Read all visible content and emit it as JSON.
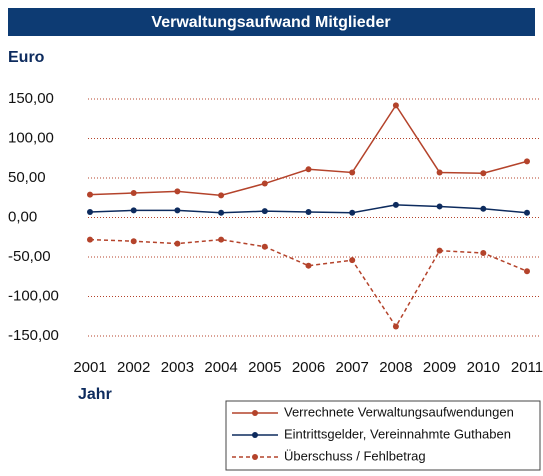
{
  "chart_data": {
    "type": "line",
    "title": "Verwaltungsaufwand Mitglieder",
    "y_label": "Euro",
    "x_label": "Jahr",
    "categories": [
      "2001",
      "2002",
      "2003",
      "2004",
      "2005",
      "2006",
      "2007",
      "2008",
      "2009",
      "2010",
      "2011"
    ],
    "series": [
      {
        "name": "Verrechnete Verwaltungsaufwendungen",
        "color": "#b4432b",
        "dash": false,
        "values": [
          29,
          31,
          33,
          28,
          43,
          61,
          57,
          142,
          57,
          56,
          71
        ]
      },
      {
        "name": "Eintrittsgelder, Vereinnahmte Guthaben",
        "color": "#0d2b5e",
        "dash": false,
        "values": [
          7,
          9,
          9,
          6,
          8,
          7,
          6,
          16,
          14,
          11,
          6
        ]
      },
      {
        "name": "Überschuss / Fehlbetrag",
        "color": "#b4432b",
        "dash": true,
        "values": [
          -28,
          -30,
          -33,
          -28,
          -37,
          -61,
          -54,
          -138,
          -42,
          -45,
          -68
        ]
      }
    ],
    "ylim": [
      -150,
      150
    ],
    "yticks": [
      {
        "value": 150,
        "label": "150,00"
      },
      {
        "value": 100,
        "label": "100,00"
      },
      {
        "value": 50,
        "label": "50,00"
      },
      {
        "value": 0,
        "label": "0,00"
      },
      {
        "value": -50,
        "label": "-50,00"
      },
      {
        "value": -100,
        "label": "-100,00"
      },
      {
        "value": -150,
        "label": "-150,00"
      }
    ],
    "grid": true,
    "grid_color": "#b4432b",
    "title_bg": "#0d3b73"
  }
}
